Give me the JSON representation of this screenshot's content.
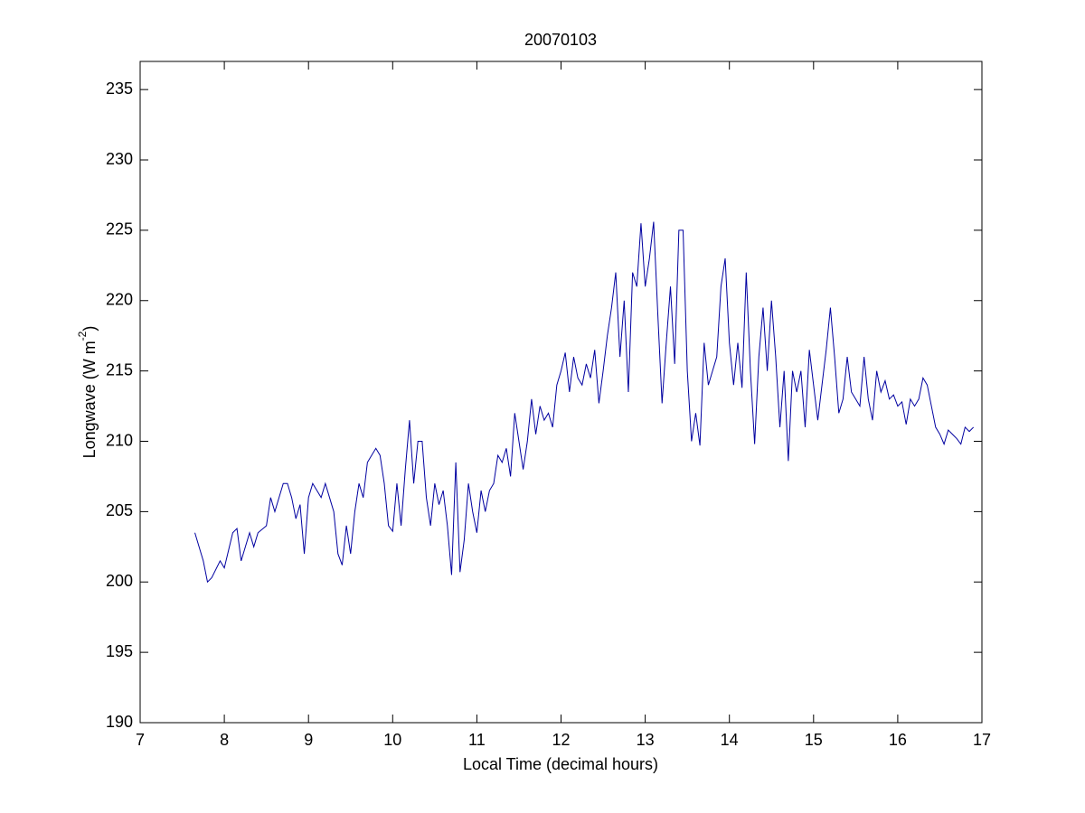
{
  "chart_data": {
    "type": "line",
    "title": "20070103",
    "xlabel": "Local Time (decimal hours)",
    "ylabel": {
      "text": "Longwave (W m",
      "superscript": "-2",
      "close": ")"
    },
    "x": [
      7.65,
      7.75,
      7.8,
      7.85,
      7.95,
      8.0,
      8.1,
      8.15,
      8.2,
      8.3,
      8.35,
      8.4,
      8.5,
      8.55,
      8.6,
      8.7,
      8.75,
      8.8,
      8.85,
      8.9,
      8.95,
      9.0,
      9.05,
      9.1,
      9.15,
      9.2,
      9.25,
      9.3,
      9.35,
      9.4,
      9.45,
      9.5,
      9.55,
      9.6,
      9.65,
      9.7,
      9.8,
      9.85,
      9.9,
      9.95,
      10.0,
      10.05,
      10.1,
      10.15,
      10.2,
      10.25,
      10.3,
      10.35,
      10.4,
      10.45,
      10.5,
      10.55,
      10.6,
      10.65,
      10.7,
      10.75,
      10.8,
      10.85,
      10.9,
      10.95,
      11.0,
      11.05,
      11.1,
      11.15,
      11.2,
      11.25,
      11.3,
      11.35,
      11.4,
      11.45,
      11.5,
      11.55,
      11.6,
      11.65,
      11.7,
      11.75,
      11.8,
      11.85,
      11.9,
      11.95,
      12.0,
      12.05,
      12.1,
      12.15,
      12.2,
      12.25,
      12.3,
      12.35,
      12.4,
      12.45,
      12.5,
      12.55,
      12.6,
      12.65,
      12.7,
      12.75,
      12.8,
      12.85,
      12.9,
      12.95,
      13.0,
      13.05,
      13.1,
      13.15,
      13.2,
      13.25,
      13.3,
      13.35,
      13.4,
      13.45,
      13.5,
      13.55,
      13.6,
      13.65,
      13.7,
      13.75,
      13.8,
      13.85,
      13.9,
      13.95,
      14.0,
      14.05,
      14.1,
      14.15,
      14.2,
      14.25,
      14.3,
      14.35,
      14.4,
      14.45,
      14.5,
      14.55,
      14.6,
      14.65,
      14.7,
      14.75,
      14.8,
      14.85,
      14.9,
      14.95,
      15.0,
      15.05,
      15.1,
      15.15,
      15.2,
      15.25,
      15.3,
      15.35,
      15.4,
      15.45,
      15.5,
      15.55,
      15.6,
      15.65,
      15.7,
      15.75,
      15.8,
      15.85,
      15.9,
      15.95,
      16.0,
      16.05,
      16.1,
      16.15,
      16.2,
      16.25,
      16.3,
      16.35,
      16.4,
      16.45,
      16.5,
      16.55,
      16.6,
      16.65,
      16.7,
      16.75,
      16.8,
      16.85,
      16.9
    ],
    "series": [
      {
        "color": "#0000a0",
        "values": [
          203.5,
          201.5,
          200,
          200.3,
          201.5,
          201,
          203.5,
          203.8,
          201.5,
          203.5,
          202.5,
          203.5,
          204,
          206,
          205,
          207,
          207,
          206,
          204.5,
          205.5,
          202,
          206,
          207,
          206.5,
          206,
          207,
          206,
          205,
          202,
          201.2,
          204,
          202,
          205,
          207,
          206,
          208.5,
          209.5,
          209,
          207,
          204,
          203.6,
          207,
          204,
          208,
          211.5,
          207,
          210,
          210,
          206,
          204,
          207,
          205.5,
          206.5,
          204,
          200.5,
          208.5,
          200.7,
          203,
          207,
          205,
          203.5,
          206.5,
          205,
          206.5,
          207,
          209,
          208.5,
          209.5,
          207.5,
          212,
          210,
          208,
          210,
          213,
          210.5,
          212.5,
          211.5,
          212,
          211,
          214,
          215,
          216.3,
          213.5,
          216,
          214.5,
          214,
          215.5,
          214.5,
          216.5,
          212.7,
          215,
          217.5,
          219.5,
          222,
          216,
          220,
          213.5,
          222,
          221,
          225.5,
          221,
          223,
          225.6,
          219,
          212.7,
          217,
          221,
          215.5,
          225,
          225,
          215,
          210,
          212,
          209.7,
          217,
          214,
          215,
          216,
          221,
          223,
          217,
          214,
          217,
          213.8,
          222,
          215,
          209.8,
          216,
          219.5,
          215,
          220,
          216,
          211,
          215,
          208.6,
          215,
          213.5,
          215,
          211,
          216.5,
          214,
          211.5,
          214,
          216.5,
          219.5,
          216,
          212,
          213,
          216,
          213.5,
          213,
          212.5,
          216,
          213,
          211.5,
          215,
          213.5,
          214.3,
          213,
          213.3,
          212.5,
          212.8,
          211.2,
          213,
          212.5,
          213,
          214.5,
          214,
          212.5,
          211,
          210.5,
          209.8,
          210.8,
          210.5,
          210.2,
          209.8,
          211,
          210.7,
          211
        ]
      }
    ],
    "xlim": [
      7,
      17
    ],
    "xticks": [
      7,
      8,
      9,
      10,
      11,
      12,
      13,
      14,
      15,
      16,
      17
    ],
    "ylim": [
      190,
      237
    ],
    "yticks": [
      190,
      195,
      200,
      205,
      210,
      215,
      220,
      225,
      230,
      235
    ],
    "grid": false
  }
}
